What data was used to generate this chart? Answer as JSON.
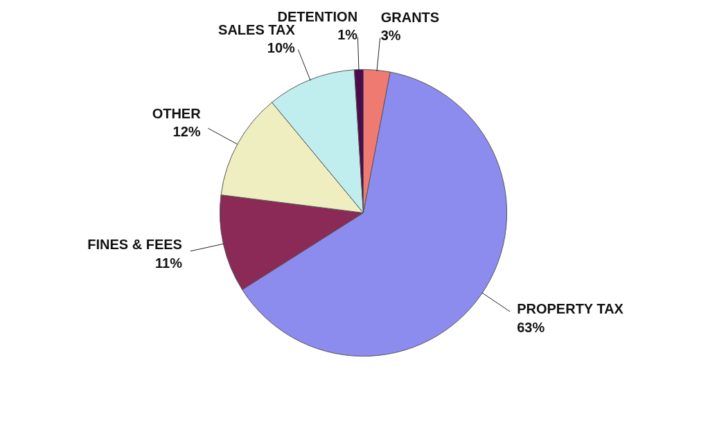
{
  "chart_data": {
    "type": "pie",
    "categories": [
      "GRANTS",
      "PROPERTY TAX",
      "FINES & FEES",
      "OTHER",
      "SALES TAX",
      "DETENTION"
    ],
    "values": [
      3,
      63,
      11,
      12,
      10,
      1
    ],
    "colors": [
      "#ee7a72",
      "#8c8cee",
      "#8b2a57",
      "#eeeec0",
      "#c0eeee",
      "#4b0a4b"
    ],
    "value_labels": [
      "3%",
      "63%",
      "11%",
      "12%",
      "10%",
      "1%"
    ]
  }
}
